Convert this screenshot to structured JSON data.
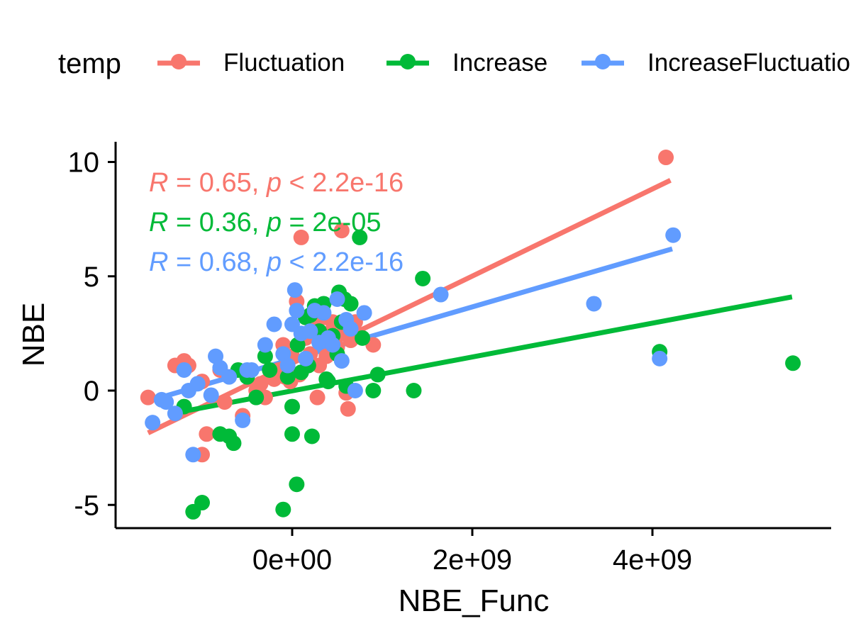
{
  "chart_data": {
    "type": "scatter",
    "xlabel": "NBE_Func",
    "ylabel": "NBE",
    "xlim": [
      -1000000000,
      5600000000
    ],
    "ylim": [
      -6,
      11
    ],
    "x_ticks": [
      0,
      2000000000,
      4000000000
    ],
    "x_tick_labels": [
      "0e+00",
      "2e+09",
      "4e+09"
    ],
    "y_ticks": [
      -5,
      0,
      5,
      10
    ],
    "y_tick_labels": [
      "-5",
      "0",
      "5",
      "10"
    ],
    "grid": false,
    "legend": {
      "title": "temp",
      "placement": "top"
    },
    "series": [
      {
        "name": "Fluctuation",
        "color": "#F8766D",
        "stat_label": {
          "r": "0.65",
          "p_op": "<",
          "p": "2.2e-16"
        },
        "fit_line": [
          [
            -1600000000,
            -1.85
          ],
          [
            4200000000,
            9.2
          ]
        ],
        "points": [
          [
            -1600000000,
            -0.3
          ],
          [
            -1300000000,
            1.1
          ],
          [
            -1200000000,
            1.3
          ],
          [
            -1150000000,
            1.1
          ],
          [
            -1000000000,
            0.4
          ],
          [
            -950000000,
            -1.9
          ],
          [
            -800000000,
            0.9
          ],
          [
            -750000000,
            -0.5
          ],
          [
            -550000000,
            -1.1
          ],
          [
            -500000000,
            0.8
          ],
          [
            -400000000,
            0.0
          ],
          [
            -350000000,
            0.3
          ],
          [
            -300000000,
            -0.3
          ],
          [
            -200000000,
            0.5
          ],
          [
            -150000000,
            0.9
          ],
          [
            -100000000,
            2.0
          ],
          [
            -80000000,
            0.6
          ],
          [
            -50000000,
            1.2
          ],
          [
            -20000000,
            0.4
          ],
          [
            0,
            1.5
          ],
          [
            50000000,
            3.9
          ],
          [
            80000000,
            0.7
          ],
          [
            100000000,
            6.7
          ],
          [
            150000000,
            2.3
          ],
          [
            200000000,
            1.6
          ],
          [
            250000000,
            2.8
          ],
          [
            280000000,
            -0.3
          ],
          [
            300000000,
            1.1
          ],
          [
            350000000,
            3.2
          ],
          [
            380000000,
            1.5
          ],
          [
            400000000,
            2.5
          ],
          [
            450000000,
            3.0
          ],
          [
            500000000,
            1.9
          ],
          [
            550000000,
            7.0
          ],
          [
            580000000,
            2.6
          ],
          [
            600000000,
            -0.1
          ],
          [
            620000000,
            -0.8
          ],
          [
            650000000,
            2.2
          ],
          [
            700000000,
            3.0
          ],
          [
            900000000,
            2.0
          ],
          [
            -1000000000,
            -2.8
          ],
          [
            4150000000,
            10.2
          ]
        ]
      },
      {
        "name": "Increase",
        "color": "#00BA38",
        "stat_label": {
          "r": "0.36",
          "p_op": "=",
          "p": "2e-05"
        },
        "fit_line": [
          [
            -1200000000,
            -0.9
          ],
          [
            5550000000,
            4.1
          ]
        ],
        "points": [
          [
            -1100000000,
            -5.3
          ],
          [
            -1000000000,
            -4.9
          ],
          [
            -1200000000,
            -0.7
          ],
          [
            -800000000,
            -1.9
          ],
          [
            -700000000,
            -2.0
          ],
          [
            -650000000,
            -2.3
          ],
          [
            -600000000,
            0.9
          ],
          [
            -500000000,
            0.6
          ],
          [
            -400000000,
            -0.3
          ],
          [
            -300000000,
            1.5
          ],
          [
            -250000000,
            0.9
          ],
          [
            -100000000,
            -5.2
          ],
          [
            -50000000,
            0.6
          ],
          [
            0,
            -0.7
          ],
          [
            0,
            -1.9
          ],
          [
            50000000,
            -4.1
          ],
          [
            60000000,
            2.0
          ],
          [
            100000000,
            0.8
          ],
          [
            150000000,
            3.2
          ],
          [
            180000000,
            1.1
          ],
          [
            200000000,
            3.3
          ],
          [
            220000000,
            -2.0
          ],
          [
            250000000,
            3.7
          ],
          [
            300000000,
            2.6
          ],
          [
            350000000,
            3.8
          ],
          [
            380000000,
            0.5
          ],
          [
            400000000,
            0.4
          ],
          [
            450000000,
            2.4
          ],
          [
            500000000,
            1.6
          ],
          [
            520000000,
            4.3
          ],
          [
            550000000,
            3.0
          ],
          [
            580000000,
            4.0
          ],
          [
            600000000,
            0.2
          ],
          [
            650000000,
            3.8
          ],
          [
            750000000,
            6.7
          ],
          [
            780000000,
            2.3
          ],
          [
            900000000,
            0.0
          ],
          [
            950000000,
            0.7
          ],
          [
            1350000000,
            0.0
          ],
          [
            1450000000,
            4.9
          ],
          [
            4080000000,
            1.7
          ],
          [
            5560000000,
            1.2
          ]
        ]
      },
      {
        "name": "IncreaseFluctuation",
        "color": "#619CFF",
        "stat_label": {
          "r": "0.68",
          "p_op": "<",
          "p": "2.2e-16"
        },
        "fit_line": [
          [
            -1550000000,
            -0.4
          ],
          [
            4220000000,
            6.2
          ]
        ],
        "points": [
          [
            -1550000000,
            -1.4
          ],
          [
            -1450000000,
            -0.4
          ],
          [
            -1400000000,
            -0.5
          ],
          [
            -1300000000,
            -1.0
          ],
          [
            -1200000000,
            0.9
          ],
          [
            -1150000000,
            0.0
          ],
          [
            -1100000000,
            -2.8
          ],
          [
            -1050000000,
            0.3
          ],
          [
            -900000000,
            -0.2
          ],
          [
            -850000000,
            1.5
          ],
          [
            -800000000,
            1.0
          ],
          [
            -700000000,
            0.6
          ],
          [
            -550000000,
            -1.3
          ],
          [
            -500000000,
            0.9
          ],
          [
            -450000000,
            0.9
          ],
          [
            -300000000,
            2.0
          ],
          [
            -200000000,
            2.9
          ],
          [
            -100000000,
            1.6
          ],
          [
            -50000000,
            1.1
          ],
          [
            0,
            2.9
          ],
          [
            30000000,
            4.4
          ],
          [
            50000000,
            3.5
          ],
          [
            100000000,
            2.5
          ],
          [
            150000000,
            1.4
          ],
          [
            200000000,
            2.6
          ],
          [
            250000000,
            3.5
          ],
          [
            300000000,
            2.1
          ],
          [
            350000000,
            3.4
          ],
          [
            400000000,
            2.3
          ],
          [
            450000000,
            2.0
          ],
          [
            500000000,
            4.0
          ],
          [
            550000000,
            1.3
          ],
          [
            600000000,
            3.1
          ],
          [
            650000000,
            2.7
          ],
          [
            700000000,
            0.0
          ],
          [
            800000000,
            3.4
          ],
          [
            1650000000,
            4.2
          ],
          [
            3350000000,
            3.8
          ],
          [
            4080000000,
            1.4
          ],
          [
            4230000000,
            6.8
          ]
        ]
      }
    ]
  }
}
